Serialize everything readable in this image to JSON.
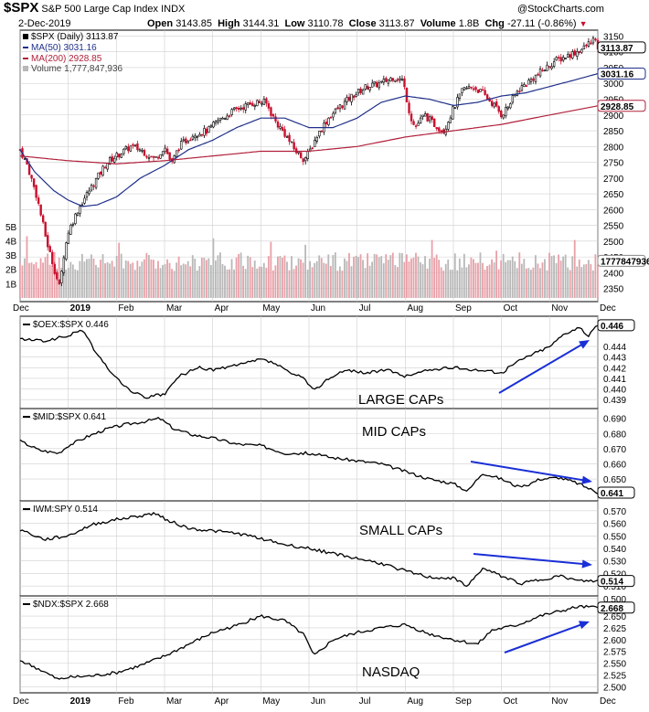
{
  "header": {
    "symbol": "$SPX",
    "name": "S&P 500 Large Cap Index",
    "exchange": "INDX",
    "date": "2-Dec-2019",
    "open_label": "Open",
    "open": "3143.85",
    "high_label": "High",
    "high": "3144.31",
    "low_label": "Low",
    "low": "3110.78",
    "close_label": "Close",
    "close": "3113.87",
    "volume_label": "Volume",
    "volume": "1.8B",
    "chg_label": "Chg",
    "chg": "-27.11 (-0.86%)",
    "brand": "@StockCharts.com"
  },
  "colors": {
    "up": "#000000",
    "down": "#c8102e",
    "ma50": "#1f2f8a",
    "ma200": "#b0203a",
    "vol_up": "#b8b8b8",
    "vol_down": "#e8a0a8",
    "arrow": "#1a2fd6",
    "grid": "#cfcfcf"
  },
  "chart_data": [
    {
      "type": "line",
      "panel": "price",
      "legend": [
        "$SPX (Daily) 3113.87",
        "MA(50) 3031.16",
        "MA(200) 2928.85",
        "Volume 1,777,847,936"
      ],
      "x_labels": [
        "Dec",
        "2019",
        "Feb",
        "Mar",
        "Apr",
        "May",
        "Jun",
        "Jul",
        "Aug",
        "Sep",
        "Oct",
        "Nov",
        "Dec"
      ],
      "x_months": [
        0,
        1,
        2,
        3,
        4,
        5,
        6,
        7,
        8,
        9,
        10,
        11,
        12
      ],
      "ylim": [
        2320,
        3160
      ],
      "y_ticks": [
        "3150",
        "3100",
        "3050",
        "3000",
        "2950",
        "2900",
        "2850",
        "2800",
        "2750",
        "2700",
        "2650",
        "2600",
        "2550",
        "2500",
        "2450",
        "2400",
        "2350"
      ],
      "vol_ticks": [
        "5B",
        "4B",
        "3B",
        "2B",
        "1B"
      ],
      "vol_ylim": [
        0,
        5.5
      ],
      "last_labels": {
        "close": "3113.87",
        "ma50": "3031.16",
        "ma200": "2928.85",
        "volume": "1777847936"
      },
      "close_anchors": [
        [
          0,
          2790
        ],
        [
          0.15,
          2740
        ],
        [
          0.35,
          2640
        ],
        [
          0.55,
          2500
        ],
        [
          0.82,
          2351
        ],
        [
          0.9,
          2450
        ],
        [
          1,
          2530
        ],
        [
          1.2,
          2600
        ],
        [
          1.35,
          2640
        ],
        [
          1.6,
          2700
        ],
        [
          1.8,
          2750
        ],
        [
          2,
          2770
        ],
        [
          2.3,
          2800
        ],
        [
          2.5,
          2790
        ],
        [
          2.8,
          2760
        ],
        [
          3,
          2800
        ],
        [
          3.15,
          2745
        ],
        [
          3.3,
          2800
        ],
        [
          3.6,
          2840
        ],
        [
          3.9,
          2850
        ],
        [
          4.1,
          2880
        ],
        [
          4.4,
          2910
        ],
        [
          4.6,
          2925
        ],
        [
          4.9,
          2940
        ],
        [
          5.1,
          2940
        ],
        [
          5.3,
          2880
        ],
        [
          5.5,
          2840
        ],
        [
          5.7,
          2790
        ],
        [
          5.9,
          2760
        ],
        [
          6.0,
          2780
        ],
        [
          6.15,
          2830
        ],
        [
          6.4,
          2890
        ],
        [
          6.6,
          2920
        ],
        [
          6.9,
          2960
        ],
        [
          7.2,
          2990
        ],
        [
          7.5,
          3000
        ],
        [
          7.75,
          3020
        ],
        [
          7.95,
          3010
        ],
        [
          8.1,
          2900
        ],
        [
          8.2,
          2860
        ],
        [
          8.4,
          2900
        ],
        [
          8.6,
          2870
        ],
        [
          8.8,
          2850
        ],
        [
          9.0,
          2920
        ],
        [
          9.2,
          2980
        ],
        [
          9.4,
          2990
        ],
        [
          9.6,
          2970
        ],
        [
          9.85,
          2930
        ],
        [
          10.0,
          2900
        ],
        [
          10.15,
          2930
        ],
        [
          10.35,
          2980
        ],
        [
          10.6,
          3010
        ],
        [
          10.85,
          3040
        ],
        [
          11.1,
          3070
        ],
        [
          11.4,
          3090
        ],
        [
          11.7,
          3110
        ],
        [
          11.9,
          3140
        ],
        [
          12.0,
          3114
        ]
      ],
      "ma50_anchors": [
        [
          0,
          2790
        ],
        [
          0.3,
          2720
        ],
        [
          0.7,
          2660
        ],
        [
          1.0,
          2630
        ],
        [
          1.3,
          2610
        ],
        [
          1.6,
          2615
        ],
        [
          2.0,
          2640
        ],
        [
          2.5,
          2700
        ],
        [
          3.0,
          2740
        ],
        [
          3.5,
          2790
        ],
        [
          4.0,
          2820
        ],
        [
          4.5,
          2860
        ],
        [
          5.0,
          2890
        ],
        [
          5.5,
          2890
        ],
        [
          6.0,
          2860
        ],
        [
          6.5,
          2860
        ],
        [
          7.0,
          2890
        ],
        [
          7.5,
          2940
        ],
        [
          8.0,
          2960
        ],
        [
          8.5,
          2950
        ],
        [
          9.0,
          2930
        ],
        [
          9.5,
          2940
        ],
        [
          10.0,
          2960
        ],
        [
          10.5,
          2970
        ],
        [
          11.0,
          2990
        ],
        [
          11.5,
          3010
        ],
        [
          12.0,
          3031
        ]
      ],
      "ma200_anchors": [
        [
          0,
          2770
        ],
        [
          1,
          2755
        ],
        [
          2,
          2745
        ],
        [
          3,
          2755
        ],
        [
          4,
          2770
        ],
        [
          5,
          2785
        ],
        [
          6,
          2785
        ],
        [
          7,
          2800
        ],
        [
          8,
          2830
        ],
        [
          9,
          2850
        ],
        [
          10,
          2870
        ],
        [
          11,
          2900
        ],
        [
          12,
          2929
        ]
      ]
    },
    {
      "type": "line",
      "panel": "ratio",
      "legend": "$OEX:$SPX 0.446",
      "annotation": "LARGE CAPs",
      "ylim": [
        0.4385,
        0.4465
      ],
      "y_ticks": [
        "0.446",
        "0.444",
        "0.443",
        "0.442",
        "0.441",
        "0.440",
        "0.439"
      ],
      "last_label": "0.446",
      "anchors": [
        [
          0,
          0.4447
        ],
        [
          0.5,
          0.4445
        ],
        [
          1.0,
          0.445
        ],
        [
          1.3,
          0.4456
        ],
        [
          1.6,
          0.4432
        ],
        [
          2.0,
          0.441
        ],
        [
          2.3,
          0.4398
        ],
        [
          2.6,
          0.4392
        ],
        [
          3.0,
          0.4395
        ],
        [
          3.3,
          0.4412
        ],
        [
          3.7,
          0.442
        ],
        [
          4.0,
          0.4418
        ],
        [
          4.5,
          0.4422
        ],
        [
          5.0,
          0.4428
        ],
        [
          5.3,
          0.4424
        ],
        [
          5.6,
          0.4415
        ],
        [
          5.9,
          0.441
        ],
        [
          6.1,
          0.4398
        ],
        [
          6.4,
          0.441
        ],
        [
          6.8,
          0.4418
        ],
        [
          7.2,
          0.4415
        ],
        [
          7.6,
          0.4418
        ],
        [
          8.0,
          0.4412
        ],
        [
          8.5,
          0.4418
        ],
        [
          9.0,
          0.442
        ],
        [
          9.5,
          0.4418
        ],
        [
          10.0,
          0.4415
        ],
        [
          10.3,
          0.4425
        ],
        [
          10.6,
          0.4432
        ],
        [
          11.0,
          0.444
        ],
        [
          11.3,
          0.4452
        ],
        [
          11.6,
          0.4458
        ],
        [
          11.8,
          0.445
        ],
        [
          12.0,
          0.446
        ]
      ]
    },
    {
      "type": "line",
      "panel": "ratio",
      "legend": "$MID:$SPX 0.641",
      "annotation": "MID CAPs",
      "ylim": [
        0.638,
        0.694
      ],
      "y_ticks": [
        "0.690",
        "0.680",
        "0.670",
        "0.660",
        "0.650",
        "0.641"
      ],
      "last_label": "0.641",
      "anchors": [
        [
          0,
          0.675
        ],
        [
          0.4,
          0.669
        ],
        [
          0.8,
          0.667
        ],
        [
          1.0,
          0.672
        ],
        [
          1.4,
          0.678
        ],
        [
          1.8,
          0.683
        ],
        [
          2.2,
          0.686
        ],
        [
          2.6,
          0.688
        ],
        [
          2.9,
          0.69
        ],
        [
          3.2,
          0.683
        ],
        [
          3.6,
          0.679
        ],
        [
          4.0,
          0.677
        ],
        [
          4.5,
          0.673
        ],
        [
          5.0,
          0.672
        ],
        [
          5.5,
          0.667
        ],
        [
          6.0,
          0.667
        ],
        [
          6.5,
          0.664
        ],
        [
          7.0,
          0.662
        ],
        [
          7.5,
          0.66
        ],
        [
          8.0,
          0.655
        ],
        [
          8.5,
          0.65
        ],
        [
          9.0,
          0.647
        ],
        [
          9.3,
          0.642
        ],
        [
          9.6,
          0.654
        ],
        [
          10.0,
          0.65
        ],
        [
          10.4,
          0.644
        ],
        [
          10.8,
          0.65
        ],
        [
          11.2,
          0.651
        ],
        [
          11.6,
          0.647
        ],
        [
          12.0,
          0.641
        ]
      ]
    },
    {
      "type": "line",
      "panel": "ratio",
      "legend": "IWM:SPY 0.514",
      "annotation": "SMALL CAPs",
      "ylim": [
        0.505,
        0.575
      ],
      "y_ticks": [
        "0.570",
        "0.560",
        "0.550",
        "0.540",
        "0.530",
        "0.520",
        "0.514",
        "0.510",
        "0.500"
      ],
      "last_label": "0.514",
      "anchors": [
        [
          0,
          0.555
        ],
        [
          0.5,
          0.547
        ],
        [
          1.0,
          0.55
        ],
        [
          1.5,
          0.559
        ],
        [
          2.0,
          0.563
        ],
        [
          2.5,
          0.566
        ],
        [
          2.8,
          0.568
        ],
        [
          3.1,
          0.562
        ],
        [
          3.5,
          0.556
        ],
        [
          4.0,
          0.554
        ],
        [
          4.5,
          0.552
        ],
        [
          5.0,
          0.548
        ],
        [
          5.5,
          0.543
        ],
        [
          6.0,
          0.54
        ],
        [
          6.5,
          0.536
        ],
        [
          7.0,
          0.532
        ],
        [
          7.5,
          0.528
        ],
        [
          8.0,
          0.522
        ],
        [
          8.5,
          0.517
        ],
        [
          9.0,
          0.516
        ],
        [
          9.3,
          0.51
        ],
        [
          9.6,
          0.524
        ],
        [
          10.0,
          0.518
        ],
        [
          10.4,
          0.512
        ],
        [
          10.8,
          0.515
        ],
        [
          11.2,
          0.518
        ],
        [
          11.6,
          0.514
        ],
        [
          12.0,
          0.514
        ]
      ]
    },
    {
      "type": "line",
      "panel": "ratio",
      "legend": "$NDX:$SPX 2.668",
      "annotation": "NASDAQ",
      "ylim": [
        2.495,
        2.685
      ],
      "y_ticks": [
        "2.668",
        "2.650",
        "2.625",
        "2.600",
        "2.575",
        "2.550",
        "2.525",
        "2.500"
      ],
      "last_label": "2.668",
      "anchors": [
        [
          0,
          2.556
        ],
        [
          0.4,
          2.537
        ],
        [
          0.8,
          2.515
        ],
        [
          1.0,
          2.52
        ],
        [
          1.5,
          2.523
        ],
        [
          2.0,
          2.53
        ],
        [
          2.5,
          2.545
        ],
        [
          3.0,
          2.565
        ],
        [
          3.5,
          2.59
        ],
        [
          4.0,
          2.615
        ],
        [
          4.5,
          2.63
        ],
        [
          5.0,
          2.65
        ],
        [
          5.5,
          2.64
        ],
        [
          5.9,
          2.61
        ],
        [
          6.1,
          2.565
        ],
        [
          6.5,
          2.6
        ],
        [
          7.0,
          2.615
        ],
        [
          7.5,
          2.625
        ],
        [
          8.0,
          2.632
        ],
        [
          8.5,
          2.612
        ],
        [
          9.0,
          2.6
        ],
        [
          9.5,
          2.59
        ],
        [
          9.8,
          2.62
        ],
        [
          10.3,
          2.63
        ],
        [
          10.8,
          2.65
        ],
        [
          11.2,
          2.66
        ],
        [
          11.6,
          2.67
        ],
        [
          12.0,
          2.668
        ]
      ]
    }
  ]
}
